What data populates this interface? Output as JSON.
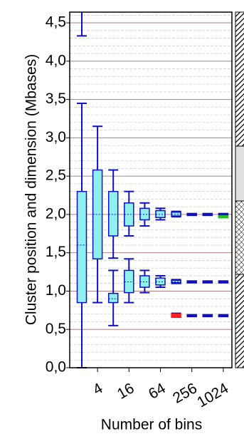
{
  "chart_data": {
    "type": "box",
    "y_label": "Cluster position and dimension (Mbases)",
    "x_label": "Number of bins",
    "categories": [
      null,
      "4",
      null,
      "16",
      null,
      "64",
      null,
      "256",
      null,
      "1024"
    ],
    "ylim": [
      0,
      4.64
    ],
    "yticks": [
      {
        "value": 0,
        "label": "0,0"
      },
      {
        "value": 0.5,
        "label": "0,5"
      },
      {
        "value": 1,
        "label": "1,0"
      },
      {
        "value": 1.5,
        "label": "1,5"
      },
      {
        "value": 2,
        "label": "2,0"
      },
      {
        "value": 2.5,
        "label": "2,5"
      },
      {
        "value": 3,
        "label": "3,0"
      },
      {
        "value": 3.5,
        "label": "3,5"
      },
      {
        "value": 4,
        "label": "4,0"
      },
      {
        "value": 4.5,
        "label": "4,5"
      }
    ],
    "minor_yticks": [
      0.1,
      0.2,
      0.3,
      0.4,
      0.6,
      0.7,
      0.8,
      0.9,
      1.1,
      1.2,
      1.3,
      1.4,
      1.6,
      1.7,
      1.8,
      1.9,
      2.1,
      2.2,
      2.3,
      2.4,
      2.6,
      2.7,
      2.8,
      2.9,
      3.1,
      3.2,
      3.3,
      3.4,
      3.6,
      3.7,
      3.8,
      3.9,
      4.1,
      4.2,
      4.3,
      4.4,
      4.6
    ],
    "grid": true,
    "boxes": [
      {
        "x": 0,
        "whislo": 0,
        "q1": 0.85,
        "med": 1.6,
        "q3": 2.3,
        "whishi": 3.45,
        "color": "#90f0f0"
      },
      {
        "x": 0,
        "whislo": 4.33,
        "q1": null,
        "med": null,
        "q3": null,
        "whishi": null,
        "color": "#90f0f0"
      },
      {
        "x": 1,
        "whislo": 0.85,
        "q1": 1.42,
        "med": 2.0,
        "q3": 2.58,
        "whishi": 3.15,
        "color": "#90f0f0"
      },
      {
        "x": 2,
        "whislo": 1.43,
        "q1": 1.72,
        "med": 2.0,
        "q3": 2.3,
        "whishi": 2.58,
        "color": "#90f0f0"
      },
      {
        "x": 2,
        "whislo": 0.55,
        "q1": 0.85,
        "med": 0.9,
        "q3": 0.97,
        "whishi": 1.27,
        "color": "#90f0f0"
      },
      {
        "x": 3,
        "whislo": 1.72,
        "q1": 1.85,
        "med": 2.0,
        "q3": 2.15,
        "whishi": 2.3,
        "color": "#90f0f0"
      },
      {
        "x": 3,
        "whislo": 0.85,
        "q1": 0.98,
        "med": 1.12,
        "q3": 1.27,
        "whishi": 1.42,
        "color": "#90f0f0"
      },
      {
        "x": 4,
        "whislo": 1.85,
        "q1": 1.93,
        "med": 2.0,
        "q3": 2.08,
        "whishi": 2.15,
        "color": "#90f0f0"
      },
      {
        "x": 4,
        "whislo": 0.98,
        "q1": 1.05,
        "med": 1.12,
        "q3": 1.2,
        "whishi": 1.27,
        "color": "#90f0f0"
      },
      {
        "x": 5,
        "whislo": 1.93,
        "q1": 1.96,
        "med": 2.0,
        "q3": 2.05,
        "whishi": 2.08,
        "color": "#90f0f0"
      },
      {
        "x": 5,
        "whislo": 1.05,
        "q1": 1.08,
        "med": 1.12,
        "q3": 1.17,
        "whishi": 1.2,
        "color": "#90f0f0"
      },
      {
        "x": 6,
        "whislo": 1.97,
        "q1": 1.98,
        "med": 2.0,
        "q3": 2.03,
        "whishi": 2.04,
        "color": "#90f0f0"
      },
      {
        "x": 6,
        "whislo": 1.1,
        "q1": 1.11,
        "med": 1.12,
        "q3": 1.14,
        "whishi": 1.15,
        "color": "#90f0f0"
      },
      {
        "x": 6,
        "whislo": 0.66,
        "q1": 0.66,
        "med": 0.68,
        "q3": 0.7,
        "whishi": 0.71,
        "color": "#ff2020"
      },
      {
        "x": 7,
        "whislo": 2.0,
        "q1": 2.0,
        "med": 2.0,
        "q3": 2.0,
        "whishi": 2.0,
        "color": "#90f0f0"
      },
      {
        "x": 7,
        "whislo": 1.12,
        "q1": 1.12,
        "med": 1.12,
        "q3": 1.12,
        "whishi": 1.12,
        "color": "#90f0f0"
      },
      {
        "x": 7,
        "whislo": 0.68,
        "q1": 0.68,
        "med": 0.68,
        "q3": 0.68,
        "whishi": 0.68,
        "color": "#90f0f0"
      },
      {
        "x": 8,
        "whislo": 2.0,
        "q1": 2.0,
        "med": 2.0,
        "q3": 2.0,
        "whishi": 2.0,
        "color": "#90f0f0"
      },
      {
        "x": 8,
        "whislo": 1.12,
        "q1": 1.12,
        "med": 1.12,
        "q3": 1.12,
        "whishi": 1.12,
        "color": "#90f0f0"
      },
      {
        "x": 8,
        "whislo": 0.68,
        "q1": 0.68,
        "med": 0.68,
        "q3": 0.68,
        "whishi": 0.68,
        "color": "#90f0f0"
      },
      {
        "x": 9,
        "whislo": 2.0,
        "q1": 2.0,
        "med": 2.0,
        "q3": 2.0,
        "whishi": 2.0,
        "color": "#90f0f0"
      },
      {
        "x": 9,
        "whislo": 1.12,
        "q1": 1.12,
        "med": 1.12,
        "q3": 1.12,
        "whishi": 1.12,
        "color": "#90f0f0"
      },
      {
        "x": 9,
        "whislo": 0.68,
        "q1": 0.68,
        "med": 0.68,
        "q3": 0.68,
        "whishi": 0.68,
        "color": "#90f0f0"
      },
      {
        "x": 9,
        "whislo": 1.97,
        "q1": 1.97,
        "med": 1.97,
        "q3": 1.97,
        "whishi": 1.97,
        "color": "#20c020"
      }
    ]
  }
}
